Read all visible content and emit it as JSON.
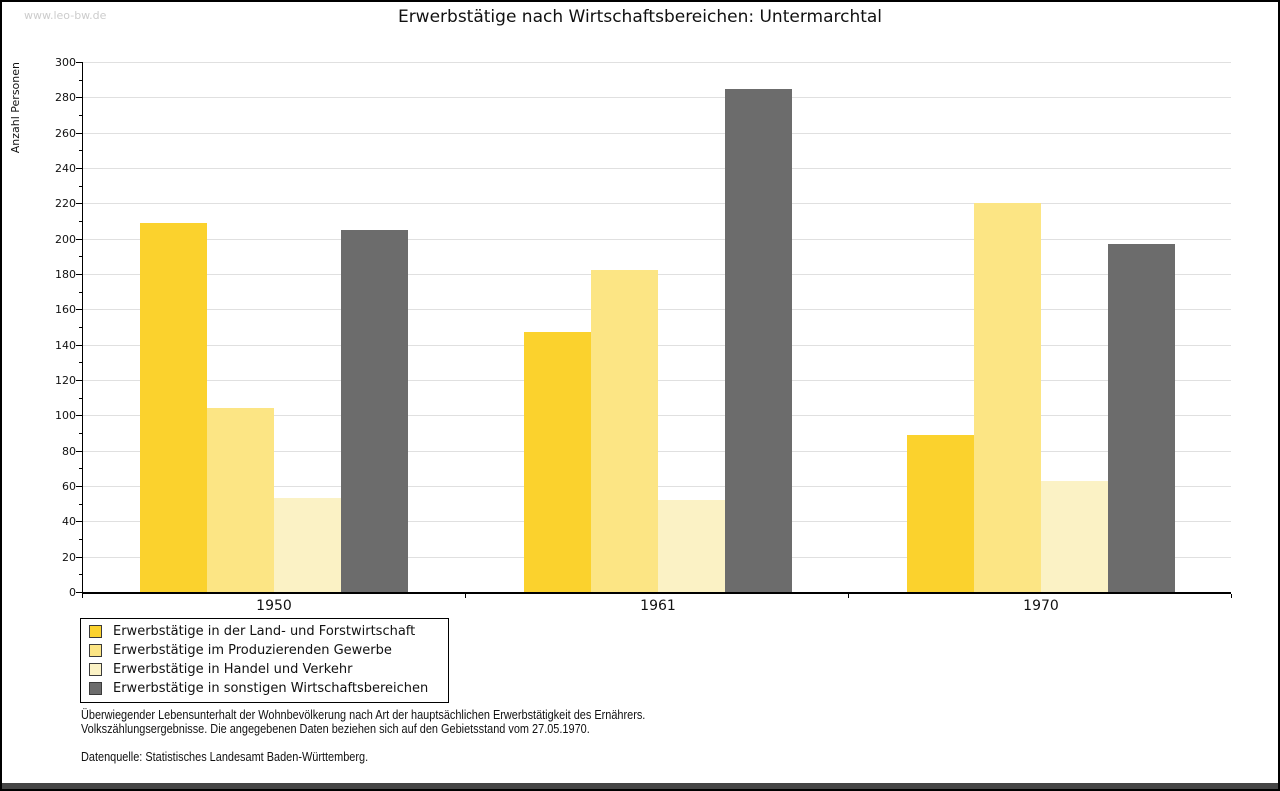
{
  "watermark": "www.leo-bw.de",
  "title": "Erwerbstätige nach Wirtschaftsbereichen: Untermarchtal",
  "chart_data": {
    "type": "bar",
    "title": "Erwerbstätige nach Wirtschaftsbereichen: Untermarchtal",
    "categories": [
      "1950",
      "1961",
      "1970"
    ],
    "series": [
      {
        "name": "Erwerbstätige in der Land- und Forstwirtschaft",
        "color": "#FBD22D",
        "values": [
          209,
          147,
          89
        ]
      },
      {
        "name": "Erwerbstätige im Produzierenden Gewerbe",
        "color": "#FCE584",
        "values": [
          104,
          182,
          220
        ]
      },
      {
        "name": "Erwerbstätige in Handel und Verkehr",
        "color": "#FBF2C5",
        "values": [
          53,
          52,
          63
        ]
      },
      {
        "name": "Erwerbstätige in sonstigen Wirtschaftsbereichen",
        "color": "#6C6C6C",
        "values": [
          205,
          285,
          197
        ]
      }
    ],
    "xlabel": "",
    "ylabel": "Anzahl Personen",
    "ylim": [
      0,
      300
    ],
    "ytick_step": 20,
    "yminor_step": 10,
    "grid": true,
    "legend_position": "bottom-left"
  },
  "footnotes": {
    "line1": "Überwiegender Lebensunterhalt der Wohnbevölkerung nach Art der hauptsächlichen Erwerbstätigkeit des Ernährers.",
    "line2": "Volkszählungsergebnisse. Die angegebenen Daten beziehen sich auf den Gebietsstand vom 27.05.1970.",
    "source": "Datenquelle: Statistisches Landesamt Baden-Württemberg."
  },
  "colors": {
    "grid": "#E0E0E0",
    "axis": "#000000",
    "watermark": "#CCCCCC",
    "bottom_bar": "#454545"
  }
}
